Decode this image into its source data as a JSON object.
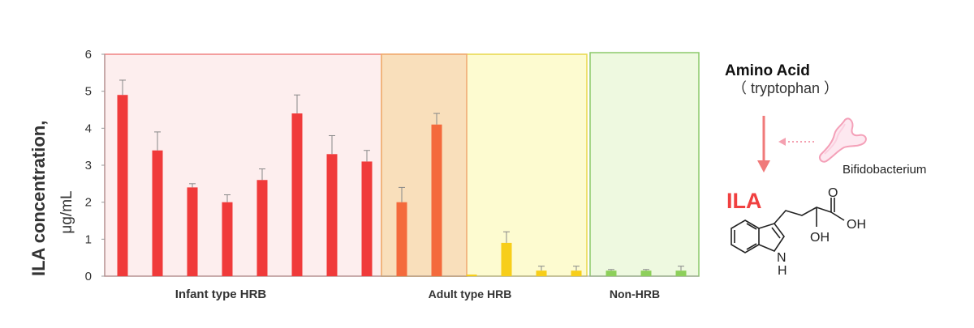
{
  "chart_data": {
    "type": "bar",
    "ylabel": "ILA concentration,",
    "yunit": "μg/mL",
    "ylim": [
      0,
      6
    ],
    "yticks": [
      "0",
      "1",
      "2",
      "3",
      "4",
      "5",
      "6"
    ],
    "grid": false,
    "groups": [
      {
        "name": "Infant type HRB",
        "color": "#f03a3a",
        "band_color": "#fdeeee",
        "border_color": "#f08080"
      },
      {
        "name": "Adult type HRB",
        "color": "#f7ce1a",
        "band_color": "#fdfbd0",
        "border_color": "#e8d84a"
      },
      {
        "name": "Non-HRB",
        "color": "#8dcf5b",
        "band_color": "#eef9e0",
        "border_color": "#8cc96a"
      }
    ],
    "bars": [
      {
        "group": 0,
        "value": 4.9,
        "error": 0.4,
        "color": "#f03a3a"
      },
      {
        "group": 0,
        "value": 3.4,
        "error": 0.5,
        "color": "#f03a3a"
      },
      {
        "group": 0,
        "value": 2.4,
        "error": 0.1,
        "color": "#f03a3a"
      },
      {
        "group": 0,
        "value": 2.0,
        "error": 0.2,
        "color": "#f03a3a"
      },
      {
        "group": 0,
        "value": 2.6,
        "error": 0.3,
        "color": "#f03a3a"
      },
      {
        "group": 0,
        "value": 4.4,
        "error": 0.5,
        "color": "#f03a3a"
      },
      {
        "group": 0,
        "value": 3.3,
        "error": 0.5,
        "color": "#f03a3a"
      },
      {
        "group": 0,
        "value": 3.1,
        "error": 0.3,
        "color": "#f03a3a"
      },
      {
        "group": 0,
        "value": 2.0,
        "error": 0.4,
        "color": "#f46a3c"
      },
      {
        "group": 0,
        "value": 4.1,
        "error": 0.3,
        "color": "#f46a3c"
      },
      {
        "group": 1,
        "value": 0.0,
        "error": 0.0,
        "color": "#f7ce1a"
      },
      {
        "group": 1,
        "value": 0.9,
        "error": 0.3,
        "color": "#f7ce1a"
      },
      {
        "group": 1,
        "value": 0.15,
        "error": 0.12,
        "color": "#f7ce1a"
      },
      {
        "group": 1,
        "value": 0.15,
        "error": 0.12,
        "color": "#f7ce1a"
      },
      {
        "group": 2,
        "value": 0.15,
        "error": 0.03,
        "color": "#8dcf5b"
      },
      {
        "group": 2,
        "value": 0.15,
        "error": 0.03,
        "color": "#8dcf5b"
      },
      {
        "group": 2,
        "value": 0.15,
        "error": 0.12,
        "color": "#8dcf5b"
      }
    ]
  },
  "pathway": {
    "title": "Amino Acid",
    "subtitle": "（ tryptophan ）",
    "bacterium_label": "Bifidobacterium",
    "product": "ILA",
    "molecule": {
      "oh_label": "OH",
      "o_label": "O",
      "nh_label": "H",
      "n_label": "N"
    },
    "colors": {
      "arrow": "#f07a7a",
      "product": "#f04040",
      "bacterium": "#f4a0b8"
    }
  }
}
